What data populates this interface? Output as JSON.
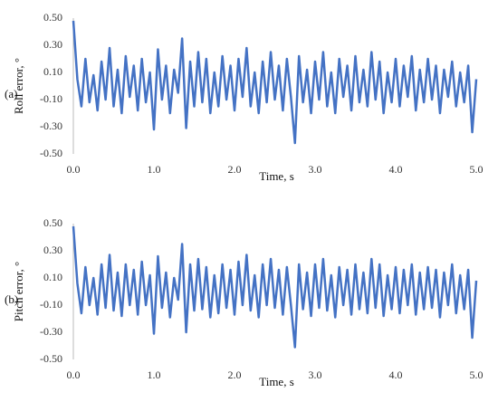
{
  "chart_data": [
    {
      "type": "line",
      "panel_label": "(a)",
      "y_label": "Roll error, °",
      "x_label": "Time, s",
      "x": [
        0,
        0.05,
        0.1,
        0.15,
        0.2,
        0.25,
        0.3,
        0.35,
        0.4,
        0.45,
        0.5,
        0.55,
        0.6,
        0.65,
        0.7,
        0.75,
        0.8,
        0.85,
        0.9,
        0.95,
        1.0,
        1.05,
        1.1,
        1.15,
        1.2,
        1.25,
        1.3,
        1.35,
        1.4,
        1.45,
        1.5,
        1.55,
        1.6,
        1.65,
        1.7,
        1.75,
        1.8,
        1.85,
        1.9,
        1.95,
        2.0,
        2.05,
        2.1,
        2.15,
        2.2,
        2.25,
        2.3,
        2.35,
        2.4,
        2.45,
        2.5,
        2.55,
        2.6,
        2.65,
        2.7,
        2.75,
        2.8,
        2.85,
        2.9,
        2.95,
        3.0,
        3.05,
        3.1,
        3.15,
        3.2,
        3.25,
        3.3,
        3.35,
        3.4,
        3.45,
        3.5,
        3.55,
        3.6,
        3.65,
        3.7,
        3.75,
        3.8,
        3.85,
        3.9,
        3.95,
        4.0,
        4.05,
        4.1,
        4.15,
        4.2,
        4.25,
        4.3,
        4.35,
        4.4,
        4.45,
        4.5,
        4.55,
        4.6,
        4.65,
        4.7,
        4.75,
        4.8,
        4.85,
        4.9,
        4.95,
        5.0
      ],
      "series": [
        {
          "color": "#4472c4",
          "values": [
            0.48,
            0.05,
            -0.15,
            0.2,
            -0.12,
            0.08,
            -0.18,
            0.18,
            -0.1,
            0.28,
            -0.15,
            0.12,
            -0.2,
            0.22,
            -0.08,
            0.15,
            -0.18,
            0.2,
            -0.12,
            0.1,
            -0.32,
            0.27,
            -0.1,
            0.15,
            -0.2,
            0.12,
            -0.05,
            0.35,
            -0.31,
            0.18,
            -0.15,
            0.25,
            -0.12,
            0.2,
            -0.2,
            0.1,
            -0.15,
            0.22,
            -0.1,
            0.15,
            -0.18,
            0.2,
            -0.08,
            0.28,
            -0.15,
            0.1,
            -0.2,
            0.18,
            -0.12,
            0.25,
            -0.1,
            0.15,
            -0.18,
            0.2,
            -0.08,
            -0.42,
            0.22,
            -0.12,
            0.12,
            -0.2,
            0.18,
            -0.1,
            0.25,
            -0.15,
            0.1,
            -0.2,
            0.2,
            -0.08,
            0.15,
            -0.18,
            0.22,
            -0.12,
            0.12,
            -0.15,
            0.25,
            -0.1,
            0.18,
            -0.2,
            0.1,
            -0.12,
            0.2,
            -0.15,
            0.15,
            -0.08,
            0.22,
            -0.18,
            0.12,
            -0.12,
            0.2,
            -0.1,
            0.15,
            -0.2,
            0.12,
            -0.08,
            0.18,
            -0.15,
            0.1,
            -0.12,
            0.15,
            -0.34,
            0.05
          ]
        }
      ],
      "xlim": [
        0,
        5
      ],
      "xticks": [
        {
          "value": 0,
          "label": "0.0"
        },
        {
          "value": 1,
          "label": "1.0"
        },
        {
          "value": 2,
          "label": "2.0"
        },
        {
          "value": 3,
          "label": "3.0"
        },
        {
          "value": 4,
          "label": "4.0"
        },
        {
          "value": 5,
          "label": "5.0"
        }
      ],
      "ylim": [
        -0.5,
        0.5
      ],
      "yticks": [
        {
          "value": 0.5,
          "label": "0.50"
        },
        {
          "value": 0.3,
          "label": "0.30"
        },
        {
          "value": 0.1,
          "label": "0.10"
        },
        {
          "value": -0.1,
          "label": "-0.10"
        },
        {
          "value": -0.3,
          "label": "-0.30"
        },
        {
          "value": -0.5,
          "label": "-0.50"
        }
      ]
    },
    {
      "type": "line",
      "panel_label": "(b)",
      "y_label": "Pitch error, °",
      "x_label": "Time, s",
      "x": [
        0,
        0.05,
        0.1,
        0.15,
        0.2,
        0.25,
        0.3,
        0.35,
        0.4,
        0.45,
        0.5,
        0.55,
        0.6,
        0.65,
        0.7,
        0.75,
        0.8,
        0.85,
        0.9,
        0.95,
        1.0,
        1.05,
        1.1,
        1.15,
        1.2,
        1.25,
        1.3,
        1.35,
        1.4,
        1.45,
        1.5,
        1.55,
        1.6,
        1.65,
        1.7,
        1.75,
        1.8,
        1.85,
        1.9,
        1.95,
        2.0,
        2.05,
        2.1,
        2.15,
        2.2,
        2.25,
        2.3,
        2.35,
        2.4,
        2.45,
        2.5,
        2.55,
        2.6,
        2.65,
        2.7,
        2.75,
        2.8,
        2.85,
        2.9,
        2.95,
        3.0,
        3.05,
        3.1,
        3.15,
        3.2,
        3.25,
        3.3,
        3.35,
        3.4,
        3.45,
        3.5,
        3.55,
        3.6,
        3.65,
        3.7,
        3.75,
        3.8,
        3.85,
        3.9,
        3.95,
        4.0,
        4.05,
        4.1,
        4.15,
        4.2,
        4.25,
        4.3,
        4.35,
        4.4,
        4.45,
        4.5,
        4.55,
        4.6,
        4.65,
        4.7,
        4.75,
        4.8,
        4.85,
        4.9,
        4.95,
        5.0
      ],
      "series": [
        {
          "color": "#4472c4",
          "values": [
            0.48,
            0.06,
            -0.16,
            0.18,
            -0.1,
            0.1,
            -0.17,
            0.2,
            -0.12,
            0.27,
            -0.14,
            0.14,
            -0.18,
            0.2,
            -0.1,
            0.16,
            -0.17,
            0.22,
            -0.1,
            0.12,
            -0.31,
            0.26,
            -0.12,
            0.14,
            -0.19,
            0.1,
            -0.06,
            0.35,
            -0.3,
            0.2,
            -0.14,
            0.24,
            -0.13,
            0.18,
            -0.19,
            0.12,
            -0.16,
            0.2,
            -0.12,
            0.16,
            -0.17,
            0.22,
            -0.1,
            0.27,
            -0.14,
            0.12,
            -0.19,
            0.2,
            -0.1,
            0.24,
            -0.12,
            0.16,
            -0.17,
            0.18,
            -0.1,
            -0.41,
            0.2,
            -0.13,
            0.14,
            -0.18,
            0.2,
            -0.12,
            0.24,
            -0.14,
            0.12,
            -0.19,
            0.18,
            -0.1,
            0.16,
            -0.17,
            0.2,
            -0.13,
            0.14,
            -0.16,
            0.24,
            -0.12,
            0.2,
            -0.18,
            0.12,
            -0.13,
            0.18,
            -0.16,
            0.16,
            -0.1,
            0.2,
            -0.17,
            0.14,
            -0.13,
            0.18,
            -0.12,
            0.16,
            -0.19,
            0.14,
            -0.1,
            0.2,
            -0.16,
            0.12,
            -0.13,
            0.16,
            -0.34,
            0.08
          ]
        }
      ],
      "xlim": [
        0,
        5
      ],
      "xticks": [
        {
          "value": 0,
          "label": "0.0"
        },
        {
          "value": 1,
          "label": "1.0"
        },
        {
          "value": 2,
          "label": "2.0"
        },
        {
          "value": 3,
          "label": "3.0"
        },
        {
          "value": 4,
          "label": "4.0"
        },
        {
          "value": 5,
          "label": "5.0"
        }
      ],
      "ylim": [
        -0.5,
        0.5
      ],
      "yticks": [
        {
          "value": 0.5,
          "label": "0.50"
        },
        {
          "value": 0.3,
          "label": "0.30"
        },
        {
          "value": 0.1,
          "label": "0.10"
        },
        {
          "value": -0.1,
          "label": "-0.10"
        },
        {
          "value": -0.3,
          "label": "-0.30"
        },
        {
          "value": -0.5,
          "label": "-0.50"
        }
      ]
    }
  ]
}
